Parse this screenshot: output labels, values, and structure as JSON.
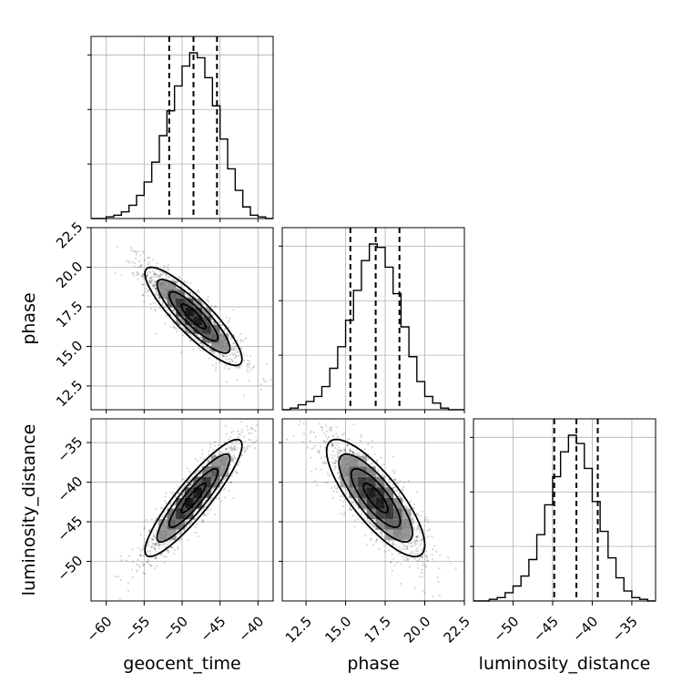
{
  "chart_data": {
    "type": "corner",
    "parameters": [
      "geocent_time",
      "phase",
      "luminosity_distance"
    ],
    "axis_labels": [
      "geocent_time",
      "phase",
      "luminosity_distance"
    ],
    "ranges": {
      "geocent_time": [
        -62,
        -38
      ],
      "phase": [
        11,
        22.5
      ],
      "luminosity_distance": [
        -55,
        -32
      ]
    },
    "ticks": {
      "geocent_time": [
        -60,
        -55,
        -50,
        -45,
        -40
      ],
      "phase": [
        12.5,
        15.0,
        17.5,
        20.0,
        22.5
      ],
      "luminosity_distance": [
        -50,
        -45,
        -40,
        -35
      ]
    },
    "tick_labels": {
      "geocent_time": [
        "−60",
        "−55",
        "−50",
        "−45",
        "−40"
      ],
      "phase": [
        "12.5",
        "15.0",
        "17.5",
        "20.0",
        "22.5"
      ],
      "luminosity_distance": [
        "−50",
        "−45",
        "−40",
        "−35"
      ]
    },
    "quantiles": {
      "geocent_time": [
        -51.7,
        -48.5,
        -45.4
      ],
      "phase": [
        15.3,
        16.9,
        18.4
      ],
      "luminosity_distance": [
        -44.8,
        -42.0,
        -39.3
      ]
    },
    "histograms": {
      "geocent_time": {
        "edges": [
          -62,
          -61,
          -60,
          -59,
          -58,
          -57,
          -56,
          -55,
          -54,
          -53,
          -52,
          -51,
          -50,
          -49,
          -48,
          -47,
          -46,
          -45,
          -44,
          -43,
          -42,
          -41,
          -40,
          -39,
          -38
        ],
        "counts": [
          0,
          0,
          0.01,
          0.02,
          0.04,
          0.08,
          0.14,
          0.22,
          0.34,
          0.5,
          0.65,
          0.8,
          0.92,
          1.0,
          0.97,
          0.85,
          0.68,
          0.48,
          0.3,
          0.17,
          0.07,
          0.02,
          0.01,
          0,
          0
        ]
      },
      "phase": {
        "edges": [
          11,
          11.5,
          12,
          12.5,
          13,
          13.5,
          14,
          14.5,
          15,
          15.5,
          16,
          16.5,
          17,
          17.5,
          18,
          18.5,
          19,
          19.5,
          20,
          20.5,
          21,
          21.5,
          22,
          22.5
        ],
        "counts": [
          0,
          0.01,
          0.03,
          0.05,
          0.08,
          0.14,
          0.25,
          0.38,
          0.54,
          0.72,
          0.9,
          1.0,
          0.98,
          0.86,
          0.7,
          0.5,
          0.32,
          0.17,
          0.08,
          0.04,
          0.01,
          0,
          0
        ]
      },
      "luminosity_distance": {
        "edges": [
          -55,
          -54,
          -53,
          -52,
          -51,
          -50,
          -49,
          -48,
          -47,
          -46,
          -45,
          -44,
          -43,
          -42,
          -41,
          -40,
          -39,
          -38,
          -37,
          -36,
          -35,
          -34,
          -33,
          -32
        ],
        "counts": [
          0,
          0,
          0.01,
          0.02,
          0.05,
          0.09,
          0.15,
          0.25,
          0.4,
          0.58,
          0.75,
          0.9,
          1.0,
          0.95,
          0.8,
          0.6,
          0.42,
          0.26,
          0.14,
          0.06,
          0.02,
          0.01,
          0
        ]
      }
    },
    "joint": [
      {
        "x": "geocent_time",
        "y": "phase",
        "mean": [
          -48.5,
          16.9
        ],
        "std": [
          3.2,
          1.55
        ],
        "rho": -0.87
      },
      {
        "x": "geocent_time",
        "y": "luminosity_distance",
        "mean": [
          -48.5,
          -42.0
        ],
        "std": [
          3.2,
          3.7
        ],
        "rho": 0.9
      },
      {
        "x": "phase",
        "y": "luminosity_distance",
        "mean": [
          16.9,
          -42.0
        ],
        "std": [
          1.55,
          3.7
        ],
        "rho": -0.8
      }
    ],
    "contour_levels_sigma": [
      0.5,
      1.0,
      1.5,
      2.0
    ],
    "grid": true
  }
}
